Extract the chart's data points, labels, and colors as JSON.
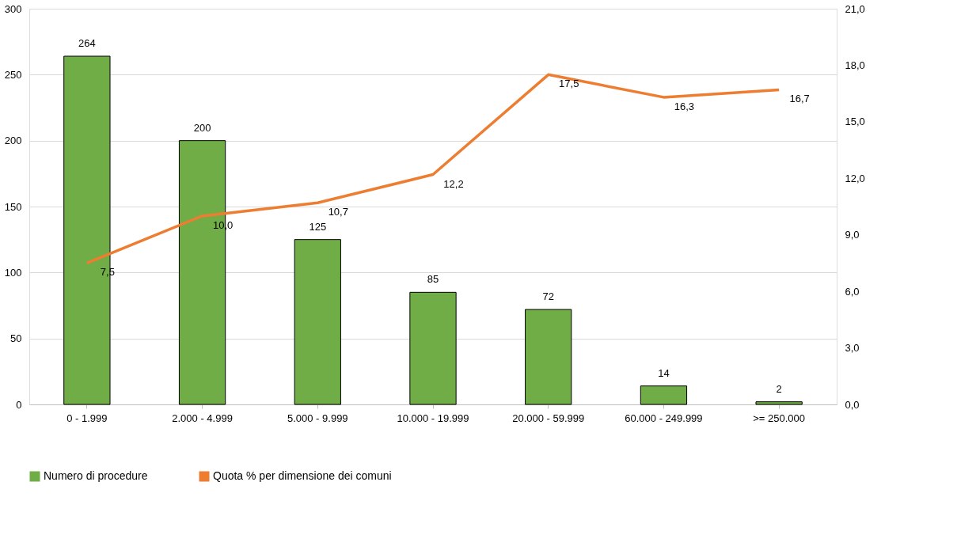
{
  "chart_data": {
    "type": "bar",
    "categories": [
      "0 - 1.999",
      "2.000 - 4.999",
      "5.000 - 9.999",
      "10.000 - 19.999",
      "20.000 - 59.999",
      "60.000 - 249.999",
      ">= 250.000"
    ],
    "series": [
      {
        "name": "Numero di procedure",
        "color": "#70ad47",
        "values": [
          264,
          200,
          125,
          85,
          72,
          14,
          2
        ],
        "value_labels": [
          "264",
          "200",
          "125",
          "85",
          "72",
          "14",
          "2"
        ]
      },
      {
        "name": "Quota % per dimensione dei comuni",
        "type": "line",
        "axis": "y2",
        "color": "#ed7d31",
        "values": [
          7.5,
          10.0,
          10.7,
          12.2,
          17.5,
          16.3,
          16.7
        ],
        "value_labels": [
          "7,5",
          "10,0",
          "10,7",
          "12,2",
          "17,5",
          "16,3",
          "16,7"
        ]
      }
    ],
    "ylim": [
      0,
      300
    ],
    "yticks": [
      0,
      50,
      100,
      150,
      200,
      250,
      300
    ],
    "y2lim": [
      0,
      21
    ],
    "y2ticks": [
      {
        "value": 0,
        "label": "0,0"
      },
      {
        "value": 3,
        "label": "3,0"
      },
      {
        "value": 6,
        "label": "6,0"
      },
      {
        "value": 9,
        "label": "9,0"
      },
      {
        "value": 12,
        "label": "12,0"
      },
      {
        "value": 15,
        "label": "15,0"
      },
      {
        "value": 18,
        "label": "18,0"
      },
      {
        "value": 21,
        "label": "21,0"
      }
    ],
    "grid": "y",
    "legend": "bottom",
    "marker": "none",
    "line_style": "solid"
  }
}
